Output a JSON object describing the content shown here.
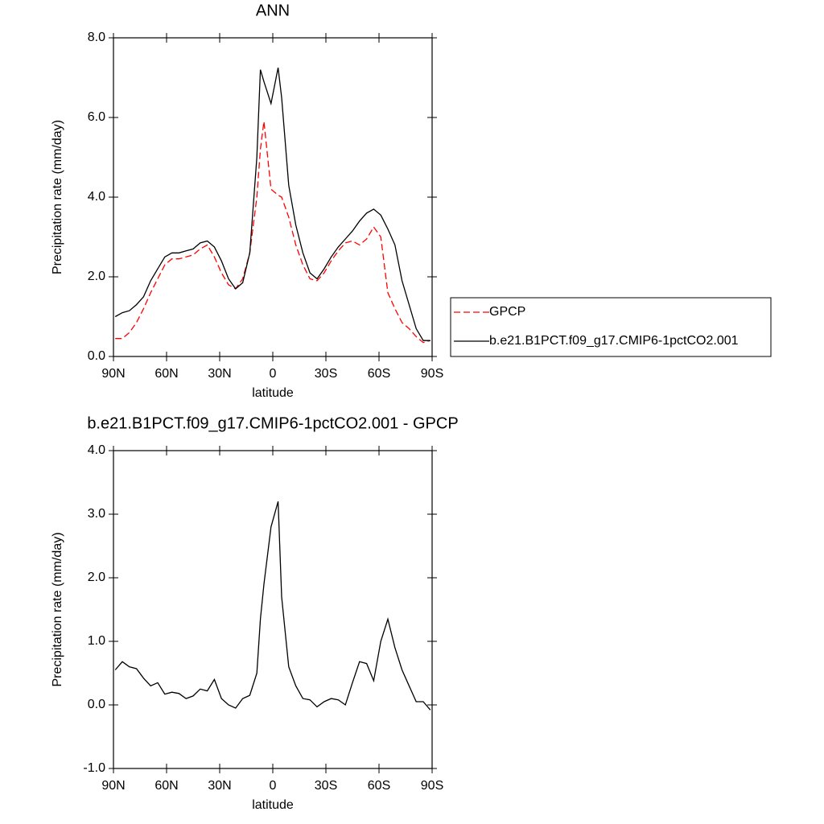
{
  "chart_data": [
    {
      "type": "line",
      "title": "ANN",
      "xlabel": "latitude",
      "ylabel": "Precipitation rate (mm/day)",
      "x": [
        89,
        85,
        81,
        77,
        73,
        69,
        65,
        61,
        57,
        53,
        49,
        45,
        41,
        37,
        33,
        29,
        25,
        21,
        17,
        13,
        9,
        7,
        5,
        1,
        -3,
        -5,
        -9,
        -13,
        -17,
        -21,
        -25,
        -29,
        -33,
        -37,
        -41,
        -45,
        -49,
        -53,
        -57,
        -61,
        -65,
        -69,
        -73,
        -77,
        -81,
        -85,
        -89
      ],
      "series": [
        {
          "name": "GPCP",
          "color": "#ff0000",
          "line_style": "dashed",
          "values": [
            0.45,
            0.45,
            0.6,
            0.85,
            1.2,
            1.6,
            1.95,
            2.3,
            2.45,
            2.45,
            2.5,
            2.55,
            2.7,
            2.8,
            2.5,
            2.1,
            1.8,
            1.7,
            1.95,
            2.6,
            4.0,
            5.2,
            5.9,
            4.2,
            4.05,
            4.0,
            3.5,
            2.8,
            2.3,
            1.95,
            1.9,
            2.1,
            2.4,
            2.65,
            2.85,
            2.9,
            2.8,
            2.95,
            3.25,
            3.0,
            1.6,
            1.2,
            0.85,
            0.7,
            0.5,
            0.35,
            0.4
          ]
        },
        {
          "name": "b.e21.B1PCT.f09_g17.CMIP6-1pctCO2.001",
          "color": "#000000",
          "line_style": "solid",
          "values": [
            1.0,
            1.1,
            1.15,
            1.3,
            1.5,
            1.9,
            2.2,
            2.5,
            2.6,
            2.6,
            2.65,
            2.7,
            2.85,
            2.9,
            2.75,
            2.4,
            1.95,
            1.7,
            1.85,
            2.6,
            5.0,
            7.2,
            6.9,
            6.35,
            7.25,
            6.5,
            4.3,
            3.3,
            2.6,
            2.1,
            1.95,
            2.2,
            2.5,
            2.75,
            2.95,
            3.15,
            3.4,
            3.6,
            3.7,
            3.55,
            3.2,
            2.8,
            1.9,
            1.3,
            0.7,
            0.4,
            0.4
          ]
        }
      ],
      "xlim": [
        90,
        -90
      ],
      "xticks": [
        {
          "value": 90,
          "label": "90N"
        },
        {
          "value": 60,
          "label": "60N"
        },
        {
          "value": 30,
          "label": "30N"
        },
        0,
        {
          "value": -30,
          "label": "30S"
        },
        {
          "value": -60,
          "label": "60S"
        },
        {
          "value": -90,
          "label": "90S"
        }
      ],
      "ylim": [
        0,
        8
      ],
      "yticks": [
        {
          "value": 0,
          "label": "0.0"
        },
        {
          "value": 2,
          "label": "2.0"
        },
        {
          "value": 4,
          "label": "4.0"
        },
        {
          "value": 6,
          "label": "6.0"
        },
        {
          "value": 8,
          "label": "8.0"
        }
      ],
      "legend": "right"
    },
    {
      "type": "line",
      "title": "b.e21.B1PCT.f09_g17.CMIP6-1pctCO2.001 - GPCP",
      "xlabel": "latitude",
      "ylabel": "Precipitation rate (mm/day)",
      "x": [
        89,
        85,
        81,
        77,
        73,
        69,
        65,
        61,
        57,
        53,
        49,
        45,
        41,
        37,
        33,
        29,
        25,
        21,
        17,
        13,
        9,
        7,
        5,
        1,
        -3,
        -5,
        -9,
        -13,
        -17,
        -21,
        -25,
        -29,
        -33,
        -37,
        -41,
        -45,
        -49,
        -53,
        -57,
        -61,
        -65,
        -69,
        -73,
        -77,
        -81,
        -85,
        -89
      ],
      "color": "#000000",
      "values": [
        0.55,
        0.68,
        0.6,
        0.57,
        0.42,
        0.3,
        0.35,
        0.17,
        0.2,
        0.18,
        0.1,
        0.14,
        0.25,
        0.22,
        0.4,
        0.1,
        0.0,
        -0.05,
        0.1,
        0.15,
        0.5,
        1.35,
        1.9,
        2.8,
        3.2,
        1.7,
        0.6,
        0.3,
        0.1,
        0.08,
        -0.03,
        0.05,
        0.1,
        0.08,
        0.0,
        0.35,
        0.68,
        0.65,
        0.38,
        1.0,
        1.35,
        0.9,
        0.55,
        0.3,
        0.05,
        0.05,
        -0.08
      ],
      "xlim": [
        90,
        -90
      ],
      "xticks": [
        {
          "value": 90,
          "label": "90N"
        },
        {
          "value": 60,
          "label": "60N"
        },
        {
          "value": 30,
          "label": "30N"
        },
        0,
        {
          "value": -30,
          "label": "30S"
        },
        {
          "value": -60,
          "label": "60S"
        },
        {
          "value": -90,
          "label": "90S"
        }
      ],
      "ylim": [
        -1,
        4
      ],
      "yticks": [
        {
          "value": -1,
          "label": "-1.0"
        },
        {
          "value": 0,
          "label": "0.0"
        },
        {
          "value": 1,
          "label": "1.0"
        },
        {
          "value": 2,
          "label": "2.0"
        },
        {
          "value": 3,
          "label": "3.0"
        },
        {
          "value": 4,
          "label": "4.0"
        }
      ]
    }
  ]
}
